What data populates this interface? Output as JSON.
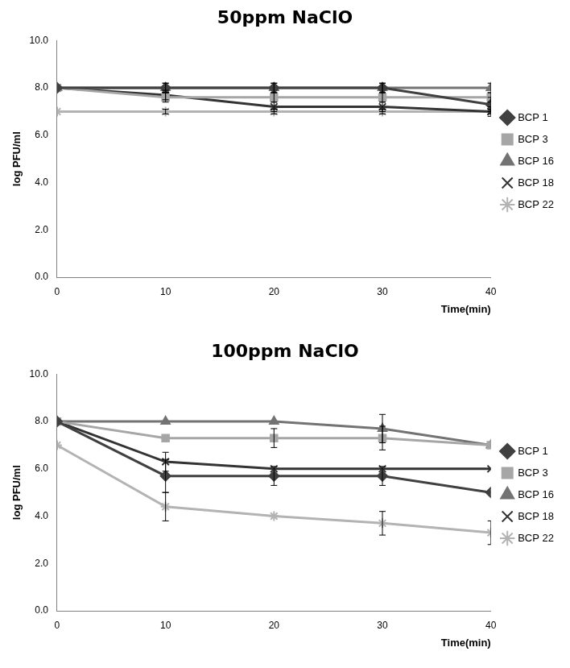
{
  "chart_data": [
    {
      "type": "line",
      "title": "50ppm NaClO",
      "x_label": "Time(min)",
      "y_label": "log PFU/ml",
      "x": [
        0,
        10,
        20,
        30,
        40
      ],
      "xlim": [
        0,
        40
      ],
      "xticks": [
        0,
        10,
        20,
        30,
        40
      ],
      "ylim": [
        0,
        10
      ],
      "yticks": [
        {
          "value": 0,
          "label": "0.0"
        },
        {
          "value": 2,
          "label": "2.0"
        },
        {
          "value": 4,
          "label": "4.0"
        },
        {
          "value": 6,
          "label": "6.0"
        },
        {
          "value": 8,
          "label": "8.0"
        },
        {
          "value": 10,
          "label": "10.0"
        }
      ],
      "grid": false,
      "legend": "right",
      "series": [
        {
          "name": "BCP 1",
          "color": "#404040",
          "marker": "diamond",
          "values": [
            8.0,
            8.0,
            8.0,
            8.0,
            7.3
          ],
          "errors": [
            0,
            0.2,
            0.2,
            0.2,
            0.3
          ]
        },
        {
          "name": "BCP 3",
          "color": "#a6a6a6",
          "marker": "square",
          "values": [
            8.0,
            7.6,
            7.6,
            7.6,
            7.6
          ],
          "errors": [
            0,
            0.2,
            0.2,
            0.2,
            0.2
          ]
        },
        {
          "name": "BCP 16",
          "color": "#737373",
          "marker": "triangle",
          "values": [
            8.0,
            8.0,
            8.0,
            8.0,
            8.0
          ],
          "errors": [
            0,
            0.2,
            0.2,
            0.2,
            0.2
          ]
        },
        {
          "name": "BCP 18",
          "color": "#333333",
          "marker": "x",
          "values": [
            8.0,
            7.7,
            7.2,
            7.2,
            7.0
          ],
          "errors": [
            0,
            0.2,
            0.2,
            0.2,
            0.2
          ]
        },
        {
          "name": "BCP 22",
          "color": "#b3b3b3",
          "marker": "star",
          "values": [
            7.0,
            7.0,
            7.0,
            7.0,
            7.0
          ],
          "errors": [
            0,
            0.1,
            0.1,
            0.1,
            0.1
          ]
        }
      ]
    },
    {
      "type": "line",
      "title": "100ppm NaClO",
      "x_label": "Time(min)",
      "y_label": "log PFU/ml",
      "x": [
        0,
        10,
        20,
        30,
        40
      ],
      "xlim": [
        0,
        40
      ],
      "xticks": [
        0,
        10,
        20,
        30,
        40
      ],
      "ylim": [
        0,
        10
      ],
      "yticks": [
        {
          "value": 0,
          "label": "0.0"
        },
        {
          "value": 2,
          "label": "2.0"
        },
        {
          "value": 4,
          "label": "4.0"
        },
        {
          "value": 6,
          "label": "6.0"
        },
        {
          "value": 8,
          "label": "8.0"
        },
        {
          "value": 10,
          "label": "10.0"
        }
      ],
      "grid": false,
      "legend": "right",
      "series": [
        {
          "name": "BCP 1",
          "color": "#404040",
          "marker": "diamond",
          "values": [
            8.0,
            5.7,
            5.7,
            5.7,
            5.0
          ],
          "errors": [
            0,
            0.7,
            0.4,
            0.4,
            0
          ]
        },
        {
          "name": "BCP 3",
          "color": "#a6a6a6",
          "marker": "square",
          "values": [
            8.0,
            7.3,
            7.3,
            7.3,
            7.0
          ],
          "errors": [
            0,
            0,
            0.4,
            0.5,
            0
          ]
        },
        {
          "name": "BCP 16",
          "color": "#737373",
          "marker": "triangle",
          "values": [
            8.0,
            8.0,
            8.0,
            7.7,
            7.0
          ],
          "errors": [
            0,
            0,
            0,
            0.6,
            0
          ]
        },
        {
          "name": "BCP 18",
          "color": "#333333",
          "marker": "x",
          "values": [
            8.0,
            6.3,
            6.0,
            6.0,
            6.0
          ],
          "errors": [
            0,
            0.4,
            0,
            0,
            0
          ]
        },
        {
          "name": "BCP 22",
          "color": "#b3b3b3",
          "marker": "star",
          "values": [
            7.0,
            4.4,
            4.0,
            3.7,
            3.3
          ],
          "errors": [
            0,
            0.6,
            0,
            0.5,
            0.5
          ]
        }
      ]
    }
  ]
}
